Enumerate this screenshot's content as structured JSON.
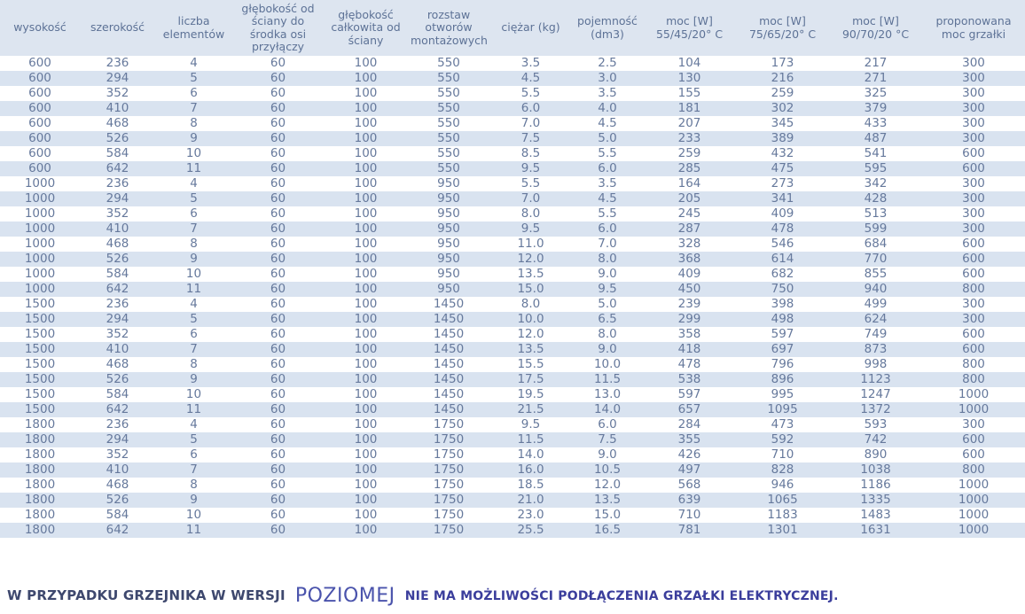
{
  "colors": {
    "header_background": "#dde5f0",
    "row_stripe": "#d9e3f0",
    "table_text": "#66799c",
    "header_text": "#5d7296",
    "footnote_text": "#3e486e",
    "footnote_highlight": "#4a53ac",
    "footnote_emphasis": "#3b3e9c"
  },
  "table": {
    "headers": [
      {
        "key": "wysokosc",
        "label": "wysokość"
      },
      {
        "key": "szerokosc",
        "label": "szerokość"
      },
      {
        "key": "liczba-elementow",
        "label": "liczba elementów"
      },
      {
        "key": "glebokosc-przylaczy",
        "label": "głębokość od ściany do środka osi przyłączy"
      },
      {
        "key": "glebokosc-calkowita",
        "label": "głębokość całkowita od ściany"
      },
      {
        "key": "rozstaw-otworow",
        "label": "rozstaw otworów montażowych"
      },
      {
        "key": "ciezar",
        "label": "ciężar (kg)"
      },
      {
        "key": "pojemnosc",
        "label": "pojemność (dm3)"
      },
      {
        "key": "moc-55-45-20",
        "label": "moc [W] 55/45/20° C"
      },
      {
        "key": "moc-75-65-20",
        "label": "moc [W] 75/65/20° C"
      },
      {
        "key": "moc-90-70-20",
        "label": "moc [W] 90/70/20 °C"
      },
      {
        "key": "moc-grzalki",
        "label": "proponowana moc grzałki"
      }
    ],
    "rows": [
      [
        "600",
        "236",
        "4",
        "60",
        "100",
        "550",
        "3.5",
        "2.5",
        "104",
        "173",
        "217",
        "300"
      ],
      [
        "600",
        "294",
        "5",
        "60",
        "100",
        "550",
        "4.5",
        "3.0",
        "130",
        "216",
        "271",
        "300"
      ],
      [
        "600",
        "352",
        "6",
        "60",
        "100",
        "550",
        "5.5",
        "3.5",
        "155",
        "259",
        "325",
        "300"
      ],
      [
        "600",
        "410",
        "7",
        "60",
        "100",
        "550",
        "6.0",
        "4.0",
        "181",
        "302",
        "379",
        "300"
      ],
      [
        "600",
        "468",
        "8",
        "60",
        "100",
        "550",
        "7.0",
        "4.5",
        "207",
        "345",
        "433",
        "300"
      ],
      [
        "600",
        "526",
        "9",
        "60",
        "100",
        "550",
        "7.5",
        "5.0",
        "233",
        "389",
        "487",
        "300"
      ],
      [
        "600",
        "584",
        "10",
        "60",
        "100",
        "550",
        "8.5",
        "5.5",
        "259",
        "432",
        "541",
        "600"
      ],
      [
        "600",
        "642",
        "11",
        "60",
        "100",
        "550",
        "9.5",
        "6.0",
        "285",
        "475",
        "595",
        "600"
      ],
      [
        "1000",
        "236",
        "4",
        "60",
        "100",
        "950",
        "5.5",
        "3.5",
        "164",
        "273",
        "342",
        "300"
      ],
      [
        "1000",
        "294",
        "5",
        "60",
        "100",
        "950",
        "7.0",
        "4.5",
        "205",
        "341",
        "428",
        "300"
      ],
      [
        "1000",
        "352",
        "6",
        "60",
        "100",
        "950",
        "8.0",
        "5.5",
        "245",
        "409",
        "513",
        "300"
      ],
      [
        "1000",
        "410",
        "7",
        "60",
        "100",
        "950",
        "9.5",
        "6.0",
        "287",
        "478",
        "599",
        "300"
      ],
      [
        "1000",
        "468",
        "8",
        "60",
        "100",
        "950",
        "11.0",
        "7.0",
        "328",
        "546",
        "684",
        "600"
      ],
      [
        "1000",
        "526",
        "9",
        "60",
        "100",
        "950",
        "12.0",
        "8.0",
        "368",
        "614",
        "770",
        "600"
      ],
      [
        "1000",
        "584",
        "10",
        "60",
        "100",
        "950",
        "13.5",
        "9.0",
        "409",
        "682",
        "855",
        "600"
      ],
      [
        "1000",
        "642",
        "11",
        "60",
        "100",
        "950",
        "15.0",
        "9.5",
        "450",
        "750",
        "940",
        "800"
      ],
      [
        "1500",
        "236",
        "4",
        "60",
        "100",
        "1450",
        "8.0",
        "5.0",
        "239",
        "398",
        "499",
        "300"
      ],
      [
        "1500",
        "294",
        "5",
        "60",
        "100",
        "1450",
        "10.0",
        "6.5",
        "299",
        "498",
        "624",
        "300"
      ],
      [
        "1500",
        "352",
        "6",
        "60",
        "100",
        "1450",
        "12.0",
        "8.0",
        "358",
        "597",
        "749",
        "600"
      ],
      [
        "1500",
        "410",
        "7",
        "60",
        "100",
        "1450",
        "13.5",
        "9.0",
        "418",
        "697",
        "873",
        "600"
      ],
      [
        "1500",
        "468",
        "8",
        "60",
        "100",
        "1450",
        "15.5",
        "10.0",
        "478",
        "796",
        "998",
        "800"
      ],
      [
        "1500",
        "526",
        "9",
        "60",
        "100",
        "1450",
        "17.5",
        "11.5",
        "538",
        "896",
        "1123",
        "800"
      ],
      [
        "1500",
        "584",
        "10",
        "60",
        "100",
        "1450",
        "19.5",
        "13.0",
        "597",
        "995",
        "1247",
        "1000"
      ],
      [
        "1500",
        "642",
        "11",
        "60",
        "100",
        "1450",
        "21.5",
        "14.0",
        "657",
        "1095",
        "1372",
        "1000"
      ],
      [
        "1800",
        "236",
        "4",
        "60",
        "100",
        "1750",
        "9.5",
        "6.0",
        "284",
        "473",
        "593",
        "300"
      ],
      [
        "1800",
        "294",
        "5",
        "60",
        "100",
        "1750",
        "11.5",
        "7.5",
        "355",
        "592",
        "742",
        "600"
      ],
      [
        "1800",
        "352",
        "6",
        "60",
        "100",
        "1750",
        "14.0",
        "9.0",
        "426",
        "710",
        "890",
        "600"
      ],
      [
        "1800",
        "410",
        "7",
        "60",
        "100",
        "1750",
        "16.0",
        "10.5",
        "497",
        "828",
        "1038",
        "800"
      ],
      [
        "1800",
        "468",
        "8",
        "60",
        "100",
        "1750",
        "18.5",
        "12.0",
        "568",
        "946",
        "1186",
        "1000"
      ],
      [
        "1800",
        "526",
        "9",
        "60",
        "100",
        "1750",
        "21.0",
        "13.5",
        "639",
        "1065",
        "1335",
        "1000"
      ],
      [
        "1800",
        "584",
        "10",
        "60",
        "100",
        "1750",
        "23.0",
        "15.0",
        "710",
        "1183",
        "1483",
        "1000"
      ],
      [
        "1800",
        "642",
        "11",
        "60",
        "100",
        "1750",
        "25.5",
        "16.5",
        "781",
        "1301",
        "1631",
        "1000"
      ]
    ]
  },
  "footnote": {
    "part1": "W PRZYPADKU GRZEJNIKA W WERSJI",
    "highlight": "POZIOMEJ",
    "part2": "NIE MA MOŻLIWOŚCI PODŁĄCZENIA GRZAŁKI ELEKTRYCZNEJ."
  }
}
